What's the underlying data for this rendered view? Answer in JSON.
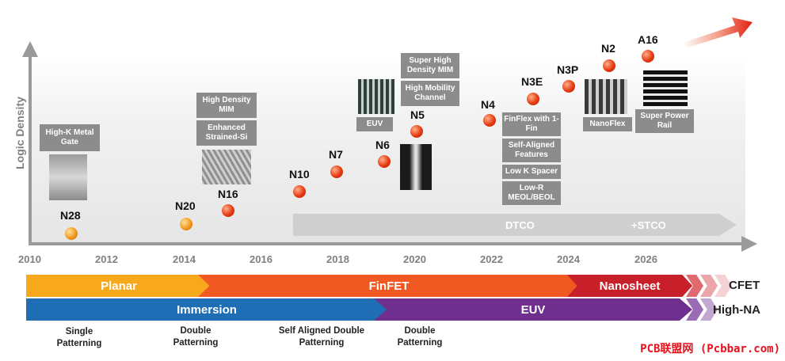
{
  "y_axis_label": "Logic Density",
  "years": [
    "2010",
    "2012",
    "2014",
    "2016",
    "2018",
    "2020",
    "2022",
    "2024",
    "2026"
  ],
  "nodes": [
    "N28",
    "N20",
    "N16",
    "N10",
    "N7",
    "N6",
    "N5",
    "N4",
    "N3E",
    "N3P",
    "N2",
    "A16"
  ],
  "tags": {
    "high_k": "High-K Metal Gate",
    "high_density_mim": "High Density MIM",
    "enhanced_si": "Enhanced Strained-Si",
    "euv": "EUV",
    "super_high_mim": "Super High Density MIM",
    "high_mobility": "High Mobility Channel",
    "finflex": "FinFlex with 1-Fin",
    "self_aligned": "Self-Aligned Features",
    "low_k": "Low K Spacer",
    "low_r": "Low-R MEOL/BEOL",
    "nanoflex": "NanoFlex",
    "super_power_rail": "Super Power Rail"
  },
  "dtco_label": "DTCO",
  "stco_label": "+STCO",
  "bands": {
    "planar": "Planar",
    "finfet": "FinFET",
    "nanosheet": "Nanosheet",
    "cfet": "CFET",
    "immersion": "Immersion",
    "euv": "EUV",
    "high_na": "High-NA"
  },
  "patterning": {
    "single": "Single Patterning",
    "double": "Double Patterning",
    "self_aligned": "Self Aligned Double Patterning",
    "double2": "Double Patterning"
  },
  "watermark": "PCB联盟网 (Pcbbar.com)",
  "colors": {
    "planar": "#f7a81b",
    "finfet": "#f05a22",
    "nanosheet": "#c8202a",
    "immersion": "#1f6db5",
    "euv": "#6e2f8e"
  }
}
